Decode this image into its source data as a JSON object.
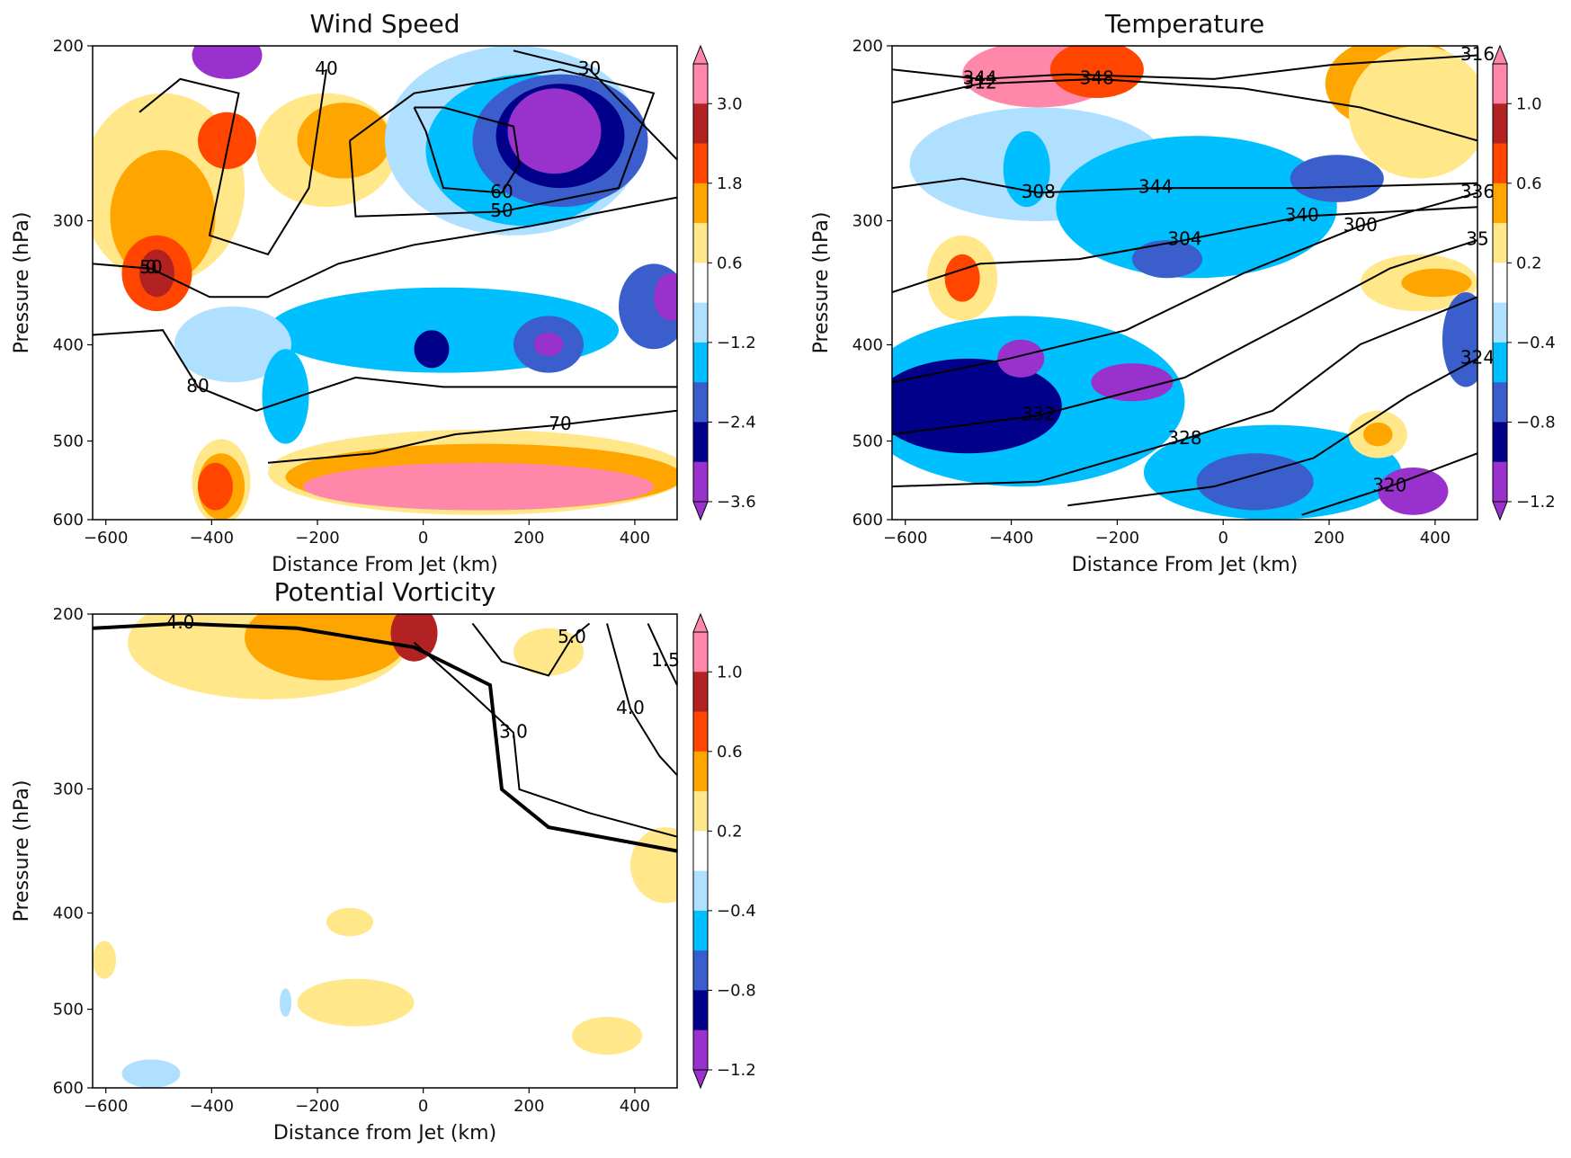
{
  "chart_data": [
    {
      "id": "wind",
      "type": "contour",
      "title": "Wind Speed",
      "xlabel": "Distance From Jet (km)",
      "ylabel": "Pressure (hPa)",
      "xlim": [
        -625,
        480
      ],
      "ylim": [
        600,
        200
      ],
      "y_scale": "log",
      "xticks": [
        -600,
        -400,
        -200,
        0,
        200,
        400
      ],
      "yticks": [
        200,
        300,
        400,
        500,
        600
      ],
      "colorbar": {
        "ticks": [
          "3.0",
          "1.8",
          "0.6",
          "−1.2",
          "−2.4",
          "−3.6"
        ],
        "colors": [
          "#ff88aa",
          "#b22222",
          "#ff4500",
          "#ffa500",
          "#ffe78a",
          "#ffffff",
          "#b0e0ff",
          "#00bfff",
          "#3a5fcd",
          "#00008b",
          "#9932cc"
        ]
      },
      "contour_labels": [
        "50",
        "80",
        "70",
        "60",
        "50",
        "40",
        "30",
        "0"
      ],
      "grid": false
    },
    {
      "id": "temperature",
      "type": "contour",
      "title": "Temperature",
      "xlabel": "Distance From Jet (km)",
      "ylabel": "Pressure (hPa)",
      "xlim": [
        -625,
        480
      ],
      "ylim": [
        600,
        200
      ],
      "y_scale": "log",
      "xticks": [
        -600,
        -400,
        -200,
        0,
        200,
        400
      ],
      "yticks": [
        200,
        300,
        400,
        500,
        600
      ],
      "colorbar": {
        "ticks": [
          "1.0",
          "0.6",
          "0.2",
          "−0.4",
          "−0.8",
          "−1.2"
        ],
        "colors": [
          "#ff88aa",
          "#b22222",
          "#ff4500",
          "#ffa500",
          "#ffe78a",
          "#ffffff",
          "#b0e0ff",
          "#00bfff",
          "#3a5fcd",
          "#00008b",
          "#9932cc"
        ]
      },
      "contour_labels": [
        "344",
        "348",
        "344",
        "340",
        "336",
        "332",
        "328",
        "324",
        "320",
        "316",
        "312",
        "308",
        "304",
        "300",
        "35"
      ],
      "grid": false
    },
    {
      "id": "pv",
      "type": "contour",
      "title": "Potential Vorticity",
      "xlabel": "Distance from Jet (km)",
      "ylabel": "Pressure (hPa)",
      "xlim": [
        -625,
        480
      ],
      "ylim": [
        600,
        200
      ],
      "y_scale": "log",
      "xticks": [
        -600,
        -400,
        -200,
        0,
        200,
        400
      ],
      "yticks": [
        200,
        300,
        400,
        500,
        600
      ],
      "colorbar": {
        "ticks": [
          "1.0",
          "0.6",
          "0.2",
          "−0.4",
          "−0.8",
          "−1.2"
        ],
        "colors": [
          "#ff88aa",
          "#b22222",
          "#ff4500",
          "#ffa500",
          "#ffe78a",
          "#ffffff",
          "#b0e0ff",
          "#00bfff",
          "#3a5fcd",
          "#00008b",
          "#9932cc"
        ]
      },
      "contour_labels": [
        "4.0",
        "3.0",
        "5.0",
        "4.0",
        "1.5"
      ],
      "grid": false
    }
  ]
}
